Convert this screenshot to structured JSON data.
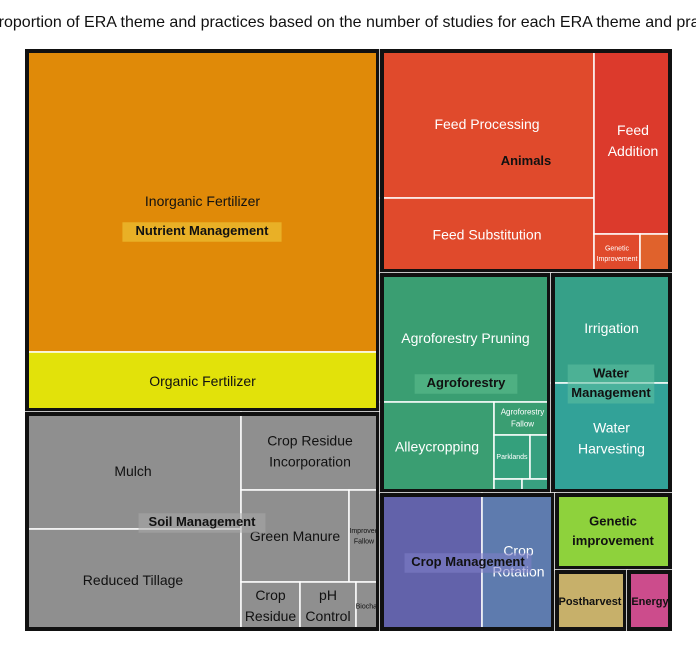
{
  "chart_data": {
    "type": "treemap",
    "title": "Proportion of ERA theme and practices based on the number of studies for each ERA theme and practice",
    "groups": [
      {
        "name": "Nutrient Management",
        "color": "#E08A08",
        "children": [
          {
            "name": "Inorganic Fertilizer",
            "color": "#E08A08"
          },
          {
            "name": "Organic Fertilizer",
            "color": "#E2E20A"
          }
        ]
      },
      {
        "name": "Animals",
        "color": "#E04A2C",
        "children": [
          {
            "name": "Feed Processing",
            "color": "#E04A2C"
          },
          {
            "name": "Feed Substitution",
            "color": "#E04A2C"
          },
          {
            "name": "Feed Addition",
            "color": "#DC3A2C"
          },
          {
            "name": "Genetic Improvement",
            "color": "#E04A2C"
          },
          {
            "name": "",
            "color": "#E0622C"
          }
        ]
      },
      {
        "name": "Soil Management",
        "color": "#8F8F8F",
        "children": [
          {
            "name": "Mulch",
            "color": "#8F8F8F"
          },
          {
            "name": "Reduced Tillage",
            "color": "#8F8F8F"
          },
          {
            "name": "Crop Residue Incorporation",
            "color": "#8F8F8F"
          },
          {
            "name": "Green Manure",
            "color": "#8F8F8F"
          },
          {
            "name": "Improved Fallow",
            "color": "#8F8F8F"
          },
          {
            "name": "Crop Residue",
            "color": "#8F8F8F"
          },
          {
            "name": "pH Control",
            "color": "#8F8F8F"
          },
          {
            "name": "Biochar",
            "color": "#8F8F8F"
          }
        ]
      },
      {
        "name": "Agroforestry",
        "color": "#3A9E72",
        "children": [
          {
            "name": "Agroforestry Pruning",
            "color": "#3A9E72"
          },
          {
            "name": "Alleycropping",
            "color": "#3A9E72"
          },
          {
            "name": "Agroforestry Fallow",
            "color": "#3A9E72"
          },
          {
            "name": "Parklands",
            "color": "#34A07C"
          },
          {
            "name": "",
            "color": "#38A080"
          },
          {
            "name": "",
            "color": "#38A080"
          },
          {
            "name": "",
            "color": "#38A080"
          }
        ]
      },
      {
        "name": "Water Management",
        "color": "#36A088",
        "children": [
          {
            "name": "Irrigation",
            "color": "#36A088"
          },
          {
            "name": "Water Harvesting",
            "color": "#32A298"
          }
        ]
      },
      {
        "name": "Crop Management",
        "color": "#6262AA",
        "children": [
          {
            "name": "",
            "color": "#6262AA"
          },
          {
            "name": "Crop Rotation",
            "color": "#5E7BAE"
          }
        ]
      },
      {
        "name": "Genetic improvement",
        "color": "#8ED23C",
        "children": []
      },
      {
        "name": "Postharvest",
        "color": "#C7B06A",
        "children": []
      },
      {
        "name": "Energy",
        "color": "#CC4C8C",
        "children": []
      }
    ]
  }
}
